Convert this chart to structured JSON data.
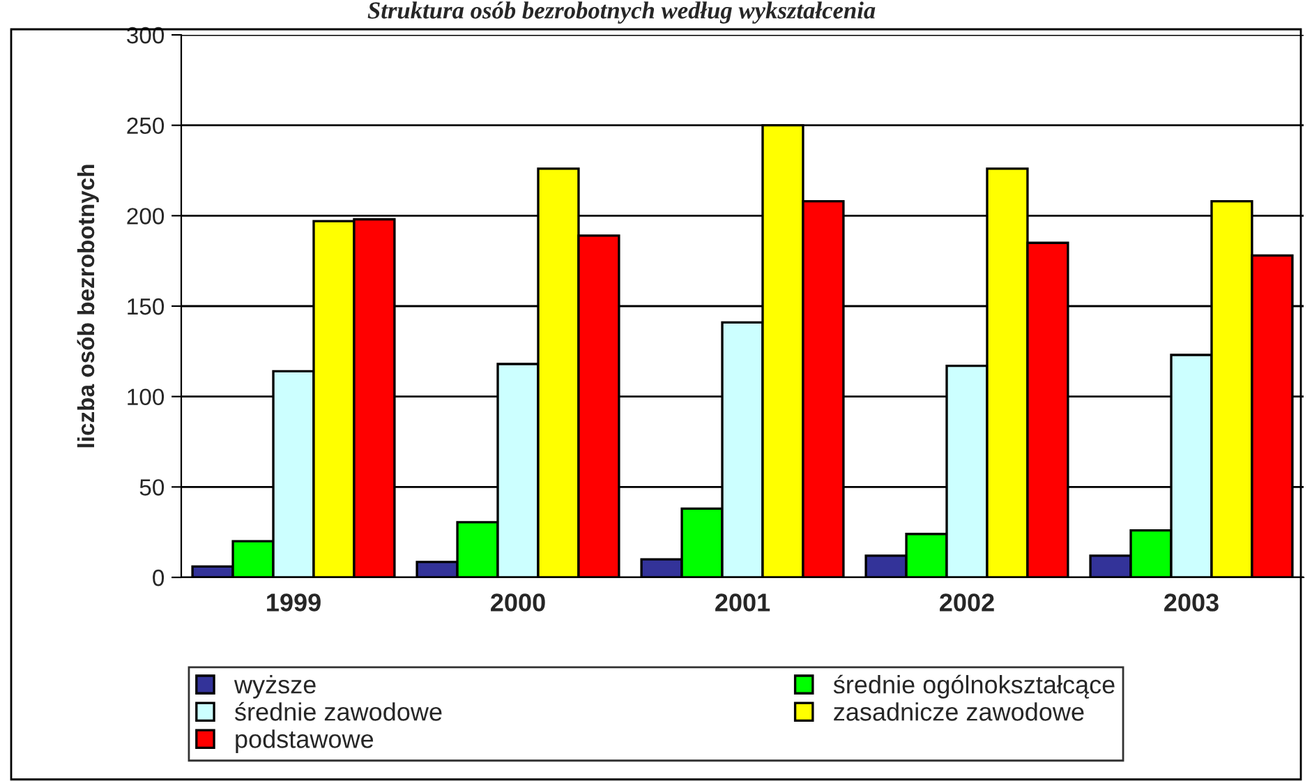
{
  "chart_data": {
    "type": "bar",
    "title": "Struktura osób bezrobotnych według wykształcenia",
    "ylabel": "liczba osób bezrobotnych",
    "categories": [
      "1999",
      "2000",
      "2001",
      "2002",
      "2003"
    ],
    "series": [
      {
        "name": "wyższe",
        "color": "#333399",
        "values": [
          6,
          8.5,
          10,
          12,
          12
        ]
      },
      {
        "name": "średnie ogólnokształcące",
        "color": "#00ff00",
        "values": [
          20,
          30.5,
          38,
          24,
          26
        ]
      },
      {
        "name": "średnie zawodowe",
        "color": "#ccffff",
        "values": [
          114,
          118,
          141,
          117,
          123
        ]
      },
      {
        "name": "zasadnicze zawodowe",
        "color": "#ffff00",
        "values": [
          197,
          226,
          250,
          226,
          208
        ]
      },
      {
        "name": "podstawowe",
        "color": "#ff0000",
        "values": [
          198,
          189,
          208,
          185,
          178
        ]
      }
    ],
    "ylim": [
      0,
      300
    ],
    "yticks": [
      0,
      50,
      100,
      150,
      200,
      250,
      300
    ],
    "grid": "y",
    "legend": "bottom"
  }
}
